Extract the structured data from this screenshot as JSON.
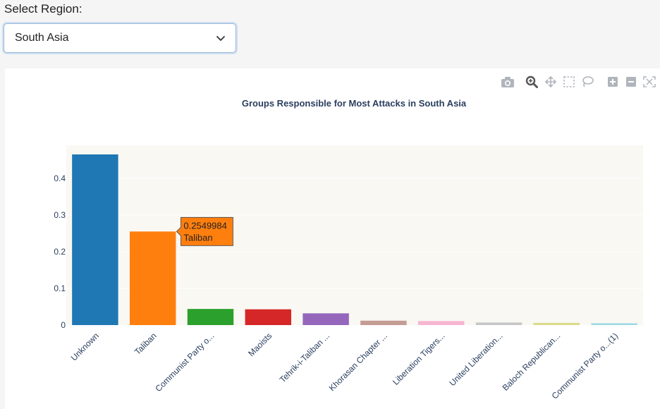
{
  "region_selector": {
    "label": "Select Region:",
    "selected": "South Asia"
  },
  "modebar": {
    "icons": [
      "camera-icon",
      "zoom-icon",
      "pan-icon",
      "box-select-icon",
      "lasso-icon",
      "zoom-in-icon",
      "zoom-out-icon",
      "autoscale-icon"
    ]
  },
  "chart_data": {
    "type": "bar",
    "title": "Groups Responsible for Most Attacks in South Asia",
    "categories": [
      "Unknown",
      "Taliban",
      "Communist Party o...",
      "Maoists",
      "Tehrik-i-Taliban ...",
      "Khorasan Chapter ...",
      "Liberation Tigers...",
      "United Liberation...",
      "Baloch Republican...",
      "Communist Party o...(1)"
    ],
    "values": [
      0.465,
      0.2549984,
      0.044,
      0.043,
      0.032,
      0.012,
      0.011,
      0.007,
      0.006,
      0.005
    ],
    "colors": [
      "#1f77b4",
      "#ff7f0e",
      "#2ca02c",
      "#d62728",
      "#9467bd",
      "#c49c94",
      "#f7b6d2",
      "#c7c7c7",
      "#dbdb8d",
      "#9edae5"
    ],
    "yticks": [
      0,
      0.1,
      0.2,
      0.3,
      0.4
    ],
    "ylim": [
      0,
      0.49
    ],
    "grid": true,
    "plot_bgcolor": "#f9f8f3",
    "tooltip": {
      "value": "0.2549984",
      "name": "Taliban"
    }
  }
}
